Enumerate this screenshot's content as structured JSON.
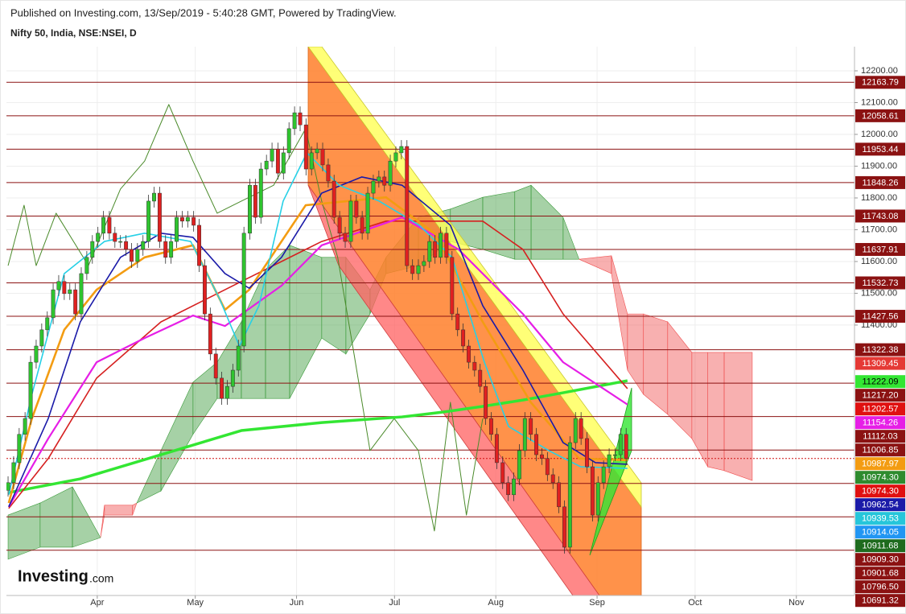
{
  "header": {
    "published": "Published on Investing.com, 13/Sep/2019 - 5:40:28 GMT, Powered by TradingView.",
    "logo_main": "Investing",
    "logo_suffix": ".com"
  },
  "chart_data": {
    "type": "candlestick",
    "title": "Nifty 50, India, NSE:NSEI, D",
    "x": [
      63.7,
      65.4,
      67.1,
      68.9,
      70.6,
      72.3,
      74.0,
      75.7,
      77.5,
      79.2,
      80.9,
      82.6,
      84.3,
      86.1,
      87.8,
      89.5,
      91.2,
      92.9,
      94.7,
      96.4,
      98.1,
      99.8,
      101.5,
      103.3,
      105.0,
      106.7,
      108.4,
      110.1,
      111.9,
      113.6,
      115.3,
      117.0,
      118.7,
      120.5,
      122.2,
      123.9,
      125.6,
      127.3,
      129.1,
      130.8,
      132.5,
      134.2,
      135.9,
      137.7,
      139.4,
      141.1,
      142.8,
      144.5,
      146.3,
      148.0,
      149.7,
      151.4,
      153.1,
      154.9,
      156.6,
      158.3,
      160.0,
      161.7,
      163.5,
      165.2,
      166.9,
      168.6,
      170.3,
      172.1,
      173.8,
      175.5,
      177.2,
      178.9,
      180.7,
      182.4,
      184.1,
      185.8,
      187.5,
      189.3,
      191.0,
      192.7,
      194.4,
      196.1,
      197.9,
      199.6,
      201.3,
      203.0,
      204.7,
      206.5,
      208.2,
      209.9,
      211.6,
      213.3,
      215.1,
      216.8,
      218.5,
      220.2,
      221.9,
      223.7,
      225.4,
      227.1,
      228.8,
      230.5,
      232.3,
      234.0,
      235.7,
      237.4,
      239.1,
      240.9,
      242.6,
      244.3,
      246.0,
      247.7,
      249.5,
      251.2,
      252.9
    ],
    "open": [
      10880,
      10904,
      10967,
      11056,
      11106,
      11283,
      11334,
      11385,
      11423,
      11511,
      11537,
      11499,
      11511,
      11435,
      11562,
      11613,
      11663,
      11689,
      11739,
      11689,
      11663,
      11663,
      11638,
      11600,
      11638,
      11663,
      11790,
      11815,
      11663,
      11613,
      11663,
      11739,
      11727,
      11739,
      11714,
      11587,
      11435,
      11309,
      11233,
      11169,
      11207,
      11258,
      11334,
      11689,
      11840,
      11739,
      11891,
      11916,
      11954,
      11878,
      11942,
      12018,
      12068,
      12030,
      11891,
      11942,
      11954,
      11904,
      11853,
      11739,
      11689,
      11663,
      11790,
      11739,
      11689,
      11815,
      11853,
      11866,
      11840,
      11916,
      11942,
      11962,
      11587,
      11562,
      11587,
      11600,
      11663,
      11613,
      11689,
      11613,
      11435,
      11385,
      11334,
      11283,
      11258,
      11207,
      11106,
      11056,
      10967,
      10904,
      10866,
      10916,
      11005,
      11106,
      11056,
      10992,
      10980,
      10929,
      10904,
      10828,
      10701,
      11030,
      11106,
      11043,
      10954,
      10802,
      10904,
      10954,
      10992,
      10992,
      11056
    ],
    "high": [
      10924,
      10987,
      11076,
      11126,
      11303,
      11354,
      11405,
      11443,
      11531,
      11557,
      11557,
      11531,
      11531,
      11582,
      11633,
      11683,
      11709,
      11759,
      11759,
      11709,
      11683,
      11683,
      11658,
      11658,
      11683,
      11810,
      11835,
      11835,
      11683,
      11683,
      11759,
      11759,
      11759,
      11759,
      11734,
      11607,
      11455,
      11329,
      11253,
      11227,
      11278,
      11354,
      11709,
      11860,
      11860,
      11911,
      11936,
      11974,
      11974,
      11962,
      12038,
      12088,
      12088,
      12050,
      11962,
      11974,
      11974,
      11924,
      11873,
      11759,
      11709,
      11810,
      11810,
      11759,
      11835,
      11873,
      11886,
      11886,
      11936,
      11962,
      11982,
      11982,
      11607,
      11607,
      11620,
      11683,
      11683,
      11709,
      11709,
      11633,
      11455,
      11405,
      11354,
      11303,
      11278,
      11227,
      11126,
      11076,
      10987,
      10924,
      10936,
      11025,
      11126,
      11126,
      11076,
      11012,
      11000,
      10949,
      10924,
      10848,
      11050,
      11126,
      11126,
      11063,
      10974,
      10924,
      10974,
      11012,
      11012,
      11076,
      11076
    ],
    "low": [
      10860,
      10884,
      10947,
      11036,
      11086,
      11263,
      11314,
      11365,
      11403,
      11491,
      11479,
      11479,
      11415,
      11415,
      11542,
      11593,
      11643,
      11669,
      11669,
      11643,
      11643,
      11618,
      11580,
      11580,
      11618,
      11643,
      11770,
      11643,
      11593,
      11593,
      11643,
      11707,
      11707,
      11694,
      11567,
      11415,
      11289,
      11213,
      11149,
      11149,
      11187,
      11238,
      11314,
      11669,
      11719,
      11719,
      11871,
      11896,
      11858,
      11858,
      11922,
      11998,
      12010,
      11871,
      11871,
      11922,
      11884,
      11833,
      11719,
      11669,
      11643,
      11643,
      11719,
      11669,
      11669,
      11795,
      11833,
      11820,
      11820,
      11896,
      11922,
      11567,
      11542,
      11542,
      11567,
      11580,
      11593,
      11593,
      11593,
      11415,
      11365,
      11314,
      11263,
      11238,
      11187,
      11086,
      11036,
      10947,
      10884,
      10846,
      10846,
      10896,
      10985,
      11036,
      10972,
      10960,
      10909,
      10884,
      10808,
      10681,
      10681,
      11010,
      11023,
      10934,
      10782,
      10782,
      10884,
      10934,
      10972,
      10972,
      10960
    ],
    "close": [
      10904,
      10967,
      11056,
      11106,
      11283,
      11334,
      11385,
      11423,
      11511,
      11537,
      11499,
      11511,
      11435,
      11562,
      11613,
      11663,
      11689,
      11739,
      11689,
      11663,
      11663,
      11638,
      11600,
      11638,
      11663,
      11790,
      11815,
      11663,
      11613,
      11663,
      11739,
      11727,
      11739,
      11714,
      11587,
      11435,
      11309,
      11233,
      11169,
      11207,
      11258,
      11334,
      11689,
      11840,
      11739,
      11891,
      11916,
      11954,
      11878,
      11942,
      12018,
      12068,
      12030,
      11891,
      11942,
      11954,
      11904,
      11853,
      11739,
      11689,
      11663,
      11790,
      11739,
      11689,
      11815,
      11853,
      11866,
      11840,
      11916,
      11942,
      11962,
      11587,
      11562,
      11587,
      11600,
      11663,
      11613,
      11689,
      11613,
      11435,
      11385,
      11334,
      11283,
      11258,
      11207,
      11106,
      11056,
      10967,
      10904,
      10866,
      10916,
      11005,
      11106,
      11056,
      10992,
      10980,
      10929,
      10904,
      10828,
      10701,
      11030,
      11106,
      11043,
      10954,
      10802,
      10904,
      10954,
      10992,
      10992,
      11056,
      10980
    ],
    "up_color": "#2fc42f",
    "down_color": "#e02020",
    "last_price_color": "#d01010",
    "xlim": [
      63.2,
      322.8
    ],
    "ylim": [
      10549,
      12276
    ],
    "xticks": [
      {
        "value": 91,
        "label": "Apr"
      },
      {
        "value": 121,
        "label": "May"
      },
      {
        "value": 152,
        "label": "Jun"
      },
      {
        "value": 182,
        "label": "Jul"
      },
      {
        "value": 213,
        "label": "Aug"
      },
      {
        "value": 244,
        "label": "Sep"
      },
      {
        "value": 274,
        "label": "Oct"
      },
      {
        "value": 305,
        "label": "Nov"
      }
    ],
    "yticks": [
      {
        "value": 12200,
        "label": "12200.00"
      },
      {
        "value": 12100,
        "label": "12100.00"
      },
      {
        "value": 12000,
        "label": "12000.00"
      },
      {
        "value": 11900,
        "label": "11900.00"
      },
      {
        "value": 11800,
        "label": "11800.00"
      },
      {
        "value": 11700,
        "label": "11700.00"
      },
      {
        "value": 11600,
        "label": "11600.00"
      },
      {
        "value": 11500,
        "label": "11500.00"
      },
      {
        "value": 11400,
        "label": "11400.00"
      }
    ],
    "grid": true,
    "cloud": {
      "bull_color": "#3a9a3a",
      "bear_color": "#f05050",
      "x": [
        63.7,
        73.5,
        83.4,
        92.0,
        93.2,
        101.8,
        103.1,
        110.5,
        120.3,
        127.7,
        135.1,
        142.5,
        149.9,
        159.7,
        167.1,
        174.5,
        179.4,
        189.3,
        199.1,
        209.0,
        218.8,
        223.8,
        233.6,
        238.5,
        248.4,
        253.3,
        258.2,
        265.6,
        273.0,
        277.9,
        282.9,
        291.5
      ],
      "span_a": [
        10802,
        10840,
        10891,
        10731,
        10802,
        10802,
        10840,
        11005,
        11220,
        11283,
        11410,
        11575,
        11651,
        11613,
        11613,
        11511,
        11613,
        11739,
        11765,
        11802,
        11820,
        11840,
        11739,
        11607,
        11562,
        11258,
        11182,
        11119,
        11043,
        10954,
        10942,
        10911
      ],
      "span_b": [
        10663,
        10701,
        10701,
        10731,
        10833,
        10833,
        10840,
        10878,
        11056,
        11169,
        11169,
        11169,
        11169,
        11359,
        11309,
        11435,
        11562,
        11587,
        11663,
        11638,
        11607,
        11607,
        11607,
        11607,
        11618,
        11435,
        11435,
        11410,
        11314,
        11314,
        11314,
        11314
      ]
    },
    "lines": [
      {
        "color": "#4a8a2a",
        "width": 1,
        "x": [
          63.7,
          68.6,
          72.3,
          78.4,
          88.3,
          98.1,
          105.5,
          112.9,
          120.3,
          127.7,
          135.1,
          145.0,
          154.8,
          159.7,
          164.6,
          169.6,
          174.5,
          181.9,
          189.3,
          194.2,
          199.1,
          204.0,
          209.0
        ],
        "values": [
          11587,
          11777,
          11587,
          11752,
          11587,
          11828,
          11916,
          12094,
          11916,
          11752,
          11790,
          11840,
          12018,
          11790,
          11613,
          11309,
          11005,
          11106,
          11005,
          10752,
          11157,
          10802,
          11106
        ]
      },
      {
        "color": "#33e633",
        "width": 3.5,
        "x": [
          63.9,
          85.8,
          110.5,
          135.1,
          159.7,
          184.3,
          196.7,
          209.0,
          221.3,
          233.6,
          253.3
        ],
        "values": [
          10873,
          10916,
          10992,
          11068,
          11093,
          11111,
          11126,
          11144,
          11164,
          11187,
          11225
        ]
      },
      {
        "color": "#d62020",
        "width": 1.6,
        "x": [
          63.9,
          76.0,
          90.8,
          110.5,
          135.1,
          159.7,
          179.4,
          209.0,
          221.3,
          233.6,
          253.3
        ],
        "values": [
          10823,
          10980,
          11233,
          11410,
          11537,
          11663,
          11727,
          11727,
          11638,
          11435,
          11200
        ]
      },
      {
        "color": "#e61ee6",
        "width": 2.2,
        "x": [
          63.9,
          76.0,
          90.8,
          105.5,
          120.3,
          130.1,
          147.4,
          159.7,
          184.3,
          201.6,
          221.3,
          233.6,
          253.3
        ],
        "values": [
          10828,
          11043,
          11283,
          11359,
          11430,
          11397,
          11524,
          11651,
          11739,
          11638,
          11435,
          11283,
          11150
        ]
      },
      {
        "color": "#f39c12",
        "width": 2.6,
        "x": [
          63.9,
          71.0,
          80.9,
          90.8,
          105.5,
          120.3,
          130.1,
          137.5,
          154.8,
          179.4,
          194.2,
          209.0,
          223.7,
          238.5,
          253.3
        ],
        "values": [
          10840,
          11106,
          11385,
          11511,
          11613,
          11651,
          11448,
          11511,
          11777,
          11802,
          11689,
          11410,
          11157,
          10980,
          10975
        ]
      },
      {
        "color": "#1a1aa8",
        "width": 1.6,
        "x": [
          63.9,
          76.0,
          85.8,
          98.1,
          110.5,
          120.3,
          130.1,
          137.5,
          147.4,
          159.7,
          172.0,
          184.3,
          199.1,
          209.0,
          221.3,
          233.6,
          243.5,
          253.3
        ],
        "values": [
          10828,
          11106,
          11410,
          11613,
          11689,
          11676,
          11562,
          11516,
          11613,
          11815,
          11866,
          11840,
          11714,
          11461,
          11258,
          11030,
          10967,
          10962
        ]
      },
      {
        "color": "#26d0e6",
        "width": 1.6,
        "x": [
          63.9,
          71.0,
          80.9,
          93.2,
          105.5,
          119.6,
          128.3,
          134.5,
          140.5,
          147.9,
          155.2,
          165.0,
          177.3,
          189.6,
          199.6,
          209.5,
          216.9,
          229.2,
          239.0,
          253.3
        ],
        "values": [
          10866,
          11182,
          11562,
          11663,
          11689,
          11663,
          11486,
          11334,
          11461,
          11790,
          11942,
          11840,
          11790,
          11714,
          11613,
          11283,
          11081,
          11005,
          10954,
          10949
        ]
      }
    ],
    "price_labels": [
      {
        "value": 12163.79,
        "color": "#8b1212",
        "hline": true
      },
      {
        "value": 12058.61,
        "color": "#8b1212",
        "hline": true
      },
      {
        "value": 11953.44,
        "color": "#8b1212",
        "hline": true
      },
      {
        "value": 11848.26,
        "color": "#8b1212",
        "hline": true
      },
      {
        "value": 11743.08,
        "color": "#8b1212",
        "hline": true
      },
      {
        "value": 11637.91,
        "color": "#8b1212",
        "hline": true
      },
      {
        "value": 11532.73,
        "color": "#8b1212",
        "hline": true
      },
      {
        "value": 11427.56,
        "color": "#8b1212",
        "hline": true
      },
      {
        "value": 11322.38,
        "color": "#8b1212",
        "hline": true
      },
      {
        "value": 11309.45,
        "color": "#e53935"
      },
      {
        "value": 11222.09,
        "color": "#33e633",
        "text_color": "#000000"
      },
      {
        "value": 11217.2,
        "label": "11217.20",
        "color": "#8b1212",
        "hline": true
      },
      {
        "value": 11202.57,
        "color": "#e01010"
      },
      {
        "value": 11154.26,
        "color": "#e61ee6"
      },
      {
        "value": 11112.03,
        "color": "#8b1212",
        "hline": true
      },
      {
        "value": 11006.85,
        "color": "#8b1212",
        "hline": true
      },
      {
        "value": 10987.97,
        "color": "#f39c12"
      },
      {
        "value": 10974.3,
        "label": "10974.30",
        "color": "#2e8b2e"
      },
      {
        "value": 10974.3,
        "label": "10974.30",
        "color": "#e01010"
      },
      {
        "value": 10962.54,
        "color": "#1a1aa8"
      },
      {
        "value": 10939.53,
        "color": "#26c6da"
      },
      {
        "value": 10914.05,
        "color": "#2196f3"
      },
      {
        "value": 10911.68,
        "color": "#1e6b1e"
      },
      {
        "value": 10909.3,
        "label": "10909.30",
        "color": "#8b1212"
      },
      {
        "value": 10901.68,
        "color": "#8b1212",
        "hline": true
      },
      {
        "value": 10796.5,
        "label": "10796.50",
        "color": "#8b1212",
        "hline": true
      },
      {
        "value": 10691.32,
        "color": "#8b1212",
        "hline": true
      }
    ]
  }
}
